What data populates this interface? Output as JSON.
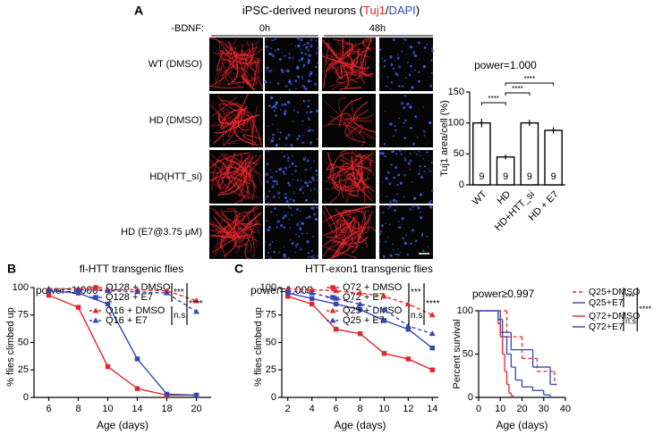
{
  "figure": {
    "panel": "A",
    "title_parts": [
      {
        "text": "iPSC-derived neurons (",
        "color": "#000000"
      },
      {
        "text": "Tuj1",
        "color": "#e3262c"
      },
      {
        "text": "/",
        "color": "#000000"
      },
      {
        "text": "DAPI",
        "color": "#3348b0"
      },
      {
        "text": ")",
        "color": "#000000"
      }
    ],
    "condition_label": "-BDNF:",
    "time_labels": [
      "0h",
      "48h"
    ],
    "row_labels": [
      "WT (DMSO)",
      "HD (DMSO)",
      "HD(HTT_si)",
      "HD (E7@3.75 μM)"
    ]
  },
  "chart_data": [
    {
      "type": "bar",
      "annotation": "power=1.000",
      "ylabel": "Tuj1 area/cell (%)",
      "categories": [
        "WT",
        "HD",
        "HD+HTT_si",
        "HD + E7"
      ],
      "values": [
        100,
        45,
        100,
        88
      ],
      "errors": [
        7,
        4,
        5,
        5
      ],
      "n_labels": [
        "9",
        "9",
        "9",
        "9"
      ],
      "color": "#ffffff",
      "edge_color": "#000000",
      "ylim": [
        0,
        150
      ],
      "yticks": [
        0,
        50,
        100,
        150
      ],
      "significance": [
        "****",
        "****",
        "****"
      ]
    },
    {
      "type": "line",
      "panel": "B",
      "title": "fl-HTT transgenic flies",
      "annotation": "power=1.000",
      "xlabel": "Age (days)",
      "ylabel": "% flies climbed up",
      "categories": [
        "6",
        "8",
        "10",
        "14",
        "18",
        "20"
      ],
      "ylim": [
        0,
        100
      ],
      "yticks": [
        0,
        25,
        50,
        75,
        100
      ],
      "series": [
        {
          "name": "Q128 + DMSO",
          "color": "#e3262c",
          "dashed": false,
          "marker": "square",
          "values": [
            93,
            82,
            28,
            8,
            2,
            2
          ]
        },
        {
          "name": "Q128 + E7",
          "color": "#3348b0",
          "dashed": false,
          "marker": "square",
          "values": [
            97,
            95,
            85,
            35,
            3,
            2
          ]
        },
        {
          "name": "Q16 + DMSO",
          "color": "#e3262c",
          "dashed": true,
          "marker": "triangle",
          "values": [
            99,
            99,
            98,
            98,
            97,
            88
          ]
        },
        {
          "name": "Q16 + E7",
          "color": "#3348b0",
          "dashed": true,
          "marker": "triangle",
          "values": [
            98,
            98,
            97,
            96,
            95,
            78
          ]
        }
      ],
      "significance": [
        "***",
        "****",
        "n.s."
      ]
    },
    {
      "type": "line",
      "panel": "C",
      "title": "HTT-exon1 transgenic flies",
      "annotation": "power=1.000",
      "xlabel": "Age (days)",
      "ylabel": "% flies climbed up",
      "x": [
        2,
        4,
        6,
        8,
        10,
        12,
        14
      ],
      "xlim": [
        1.5,
        14.5
      ],
      "xticks": [
        2,
        4,
        6,
        8,
        10,
        12,
        14
      ],
      "ylim": [
        0,
        100
      ],
      "yticks": [
        0,
        25,
        50,
        75,
        100
      ],
      "series": [
        {
          "name": "Q72 + DMSO",
          "color": "#e3262c",
          "dashed": false,
          "marker": "square",
          "values": [
            92,
            85,
            62,
            58,
            40,
            35,
            25
          ]
        },
        {
          "name": "Q72 + E7",
          "color": "#3348b0",
          "dashed": false,
          "marker": "square",
          "values": [
            95,
            90,
            85,
            80,
            70,
            62,
            45
          ]
        },
        {
          "name": "Q25 + DMSO",
          "color": "#e3262c",
          "dashed": true,
          "marker": "triangle",
          "values": [
            99,
            98,
            97,
            95,
            92,
            85,
            75
          ]
        },
        {
          "name": "Q25 + E7",
          "color": "#3348b0",
          "dashed": true,
          "marker": "triangle",
          "values": [
            97,
            95,
            90,
            85,
            80,
            65,
            58
          ]
        }
      ],
      "significance": [
        "***",
        "****",
        "n.s."
      ]
    },
    {
      "type": "step",
      "annotation": "power≥0.997",
      "xlabel": "Age (days)",
      "ylabel": "Percent survival",
      "xlim": [
        0,
        40
      ],
      "xticks": [
        0,
        10,
        20,
        30,
        40
      ],
      "ylim": [
        0,
        100
      ],
      "yticks": [
        0,
        50,
        100
      ],
      "series": [
        {
          "name": "Q25+DMSO",
          "color": "#e3262c",
          "dashed": true,
          "x": [
            0,
            13,
            20,
            27,
            35,
            36
          ],
          "values": [
            100,
            70,
            45,
            30,
            15,
            15
          ]
        },
        {
          "name": "Q25+E7",
          "color": "#3348b0",
          "dashed": false,
          "x": [
            0,
            10,
            15,
            25,
            33,
            36
          ],
          "values": [
            100,
            75,
            55,
            35,
            15,
            15
          ]
        },
        {
          "name": "Q72+DMSO",
          "color": "#e3262c",
          "dashed": false,
          "x": [
            0,
            9,
            10,
            11,
            12,
            13,
            14,
            15,
            16
          ],
          "values": [
            100,
            85,
            70,
            50,
            30,
            15,
            5,
            2,
            0
          ]
        },
        {
          "name": "Q72+E7",
          "color": "#3348b0",
          "dashed": false,
          "x": [
            0,
            9,
            11,
            13,
            15,
            17,
            20,
            25,
            30,
            33
          ],
          "values": [
            100,
            90,
            70,
            50,
            35,
            20,
            12,
            8,
            3,
            0
          ]
        }
      ],
      "significance": [
        "***",
        "****",
        "n.s."
      ]
    }
  ]
}
